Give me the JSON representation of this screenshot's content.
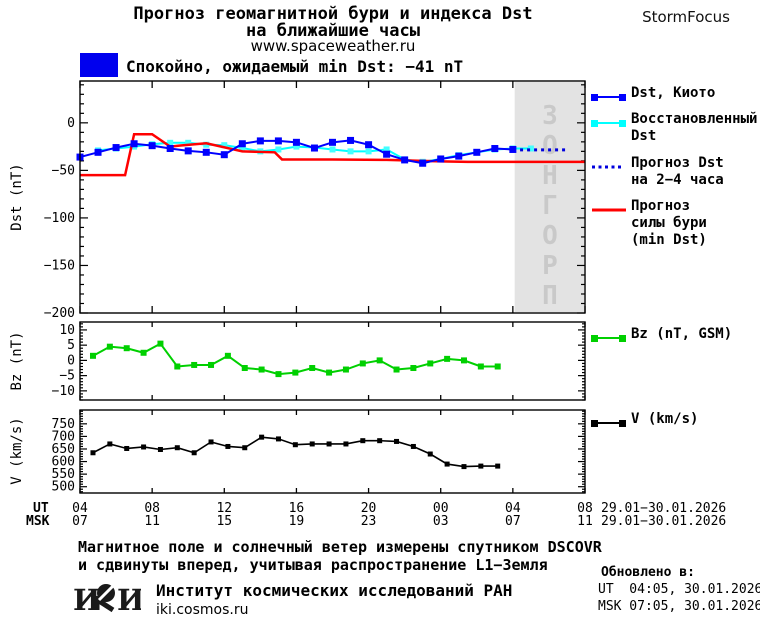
{
  "header": {
    "title_line1": "Прогноз геомагнитной бури и индекса Dst",
    "title_line2": "на ближайшие часы",
    "website": "www.spaceweather.ru",
    "brand": "StormFocus",
    "status_text": "Спокойно, ожидаемый min Dst: −41 nT",
    "status_color": "#0000ee"
  },
  "colors": {
    "dst_kyoto": "#0000ff",
    "dst_restored": "#00ffff",
    "dst_forecast": "#0000dd",
    "storm_forecast": "#ff0000",
    "bz": "#00d000",
    "v": "#000000"
  },
  "forecast_band": {
    "label": "ПРОГНОЗ",
    "start_hour": 24.1,
    "color": "#e3e3e3",
    "text_color": "#c9c9c9"
  },
  "chart_data": [
    {
      "type": "line",
      "ylabel": "Dst (nT)",
      "ylim": [
        -200,
        44
      ],
      "xlim_hours": [
        0,
        28
      ],
      "x_major_step": 4,
      "y_minor_step": 10,
      "y_major_ticks": [
        {
          "v": 0,
          "label": "0"
        },
        {
          "v": -50,
          "label": "−50"
        },
        {
          "v": -100,
          "label": "−100"
        },
        {
          "v": -150,
          "label": "−150"
        },
        {
          "v": -200,
          "label": "−200"
        }
      ],
      "series": [
        {
          "name": "dst_restored",
          "color": "#00ffff",
          "marker": "square",
          "marker_size": 6,
          "marker_color": "#44ffff",
          "width": 2,
          "x_start": 1,
          "x_step": 1,
          "values": [
            -29,
            -27,
            -25,
            -22.5,
            -21,
            -21,
            -23,
            -23.5,
            -26.5,
            -30,
            -28,
            -25,
            -26,
            -28,
            -30,
            -30,
            -28,
            -38.5,
            -41,
            -38,
            -34,
            -31,
            -28,
            -27,
            -27
          ]
        },
        {
          "name": "storm_forecast",
          "color": "#ff0000",
          "width": 2.5,
          "points": [
            [
              0,
              -55
            ],
            [
              2.5,
              -55
            ],
            [
              3,
              -12
            ],
            [
              4,
              -12
            ],
            [
              5,
              -25
            ],
            [
              5.5,
              -24
            ],
            [
              7,
              -21.5
            ],
            [
              9,
              -30
            ],
            [
              10.8,
              -31
            ],
            [
              11.2,
              -38.5
            ],
            [
              14,
              -38.5
            ],
            [
              17,
              -39
            ],
            [
              20,
              -40.5
            ],
            [
              21.5,
              -41
            ],
            [
              28,
              -41
            ]
          ]
        },
        {
          "name": "dst_kyoto",
          "color": "#0000ff",
          "marker": "square",
          "marker_size": 7,
          "width": 2,
          "x_start": 0,
          "x_step": 1,
          "values": [
            -36,
            -31,
            -26,
            -22,
            -24,
            -27,
            -29.5,
            -31,
            -33.5,
            -22,
            -19,
            -19,
            -20.5,
            -26.5,
            -20.5,
            -18.5,
            -23,
            -33,
            -39,
            -42.5,
            -38,
            -35,
            -31,
            -27,
            -28
          ]
        },
        {
          "name": "dst_forecast",
          "color": "#0000dd",
          "style": "dotted",
          "width": 3,
          "points": [
            [
              24.4,
              -28.5
            ],
            [
              27.1,
              -28.5
            ]
          ]
        }
      ]
    },
    {
      "type": "line",
      "ylabel": "Bz (nT)",
      "ylim": [
        -13,
        12.6
      ],
      "xlim_hours": [
        0,
        28
      ],
      "x_major_step": 4,
      "y_minor_step": 1,
      "y_major_ticks": [
        {
          "v": 10,
          "label": "10"
        },
        {
          "v": 5,
          "label": "5"
        },
        {
          "v": 0,
          "label": "0"
        },
        {
          "v": -5,
          "label": "−5"
        },
        {
          "v": -10,
          "label": "−10"
        }
      ],
      "series": [
        {
          "name": "bz",
          "color": "#00d000",
          "marker": "square",
          "marker_size": 6,
          "width": 2,
          "x_start": 0.72,
          "x_step": 0.935,
          "values": [
            1.5,
            4.5,
            4,
            2.5,
            5.5,
            -2,
            -1.5,
            -1.5,
            1.5,
            -2.5,
            -3,
            -4.5,
            -4,
            -2.5,
            -4,
            -3,
            -1,
            0,
            -3,
            -2.5,
            -1,
            0.5,
            0,
            -2,
            -2
          ]
        }
      ]
    },
    {
      "type": "line",
      "ylabel": "V (km/s)",
      "ylim": [
        475,
        805
      ],
      "xlim_hours": [
        0,
        28
      ],
      "x_major_step": 4,
      "y_minor_step": 10,
      "y_major_ticks": [
        {
          "v": 750,
          "label": "750"
        },
        {
          "v": 700,
          "label": "700"
        },
        {
          "v": 650,
          "label": "650"
        },
        {
          "v": 600,
          "label": "600"
        },
        {
          "v": 550,
          "label": "550"
        },
        {
          "v": 500,
          "label": "500"
        }
      ],
      "series": [
        {
          "name": "v",
          "color": "#000000",
          "marker": "square",
          "marker_size": 5,
          "width": 1.6,
          "x_start": 0.72,
          "x_step": 0.935,
          "values": [
            635,
            670,
            652,
            658,
            648,
            655,
            635,
            678,
            660,
            655,
            697,
            690,
            667,
            670,
            670,
            670,
            683,
            683,
            680,
            660,
            630,
            590,
            580,
            582,
            582
          ]
        }
      ]
    }
  ],
  "x_axis": {
    "ut_label": "UT",
    "msk_label": "MSK",
    "ut_ticks": [
      "04",
      "08",
      "12",
      "16",
      "20",
      "00",
      "04",
      "08"
    ],
    "msk_ticks": [
      "07",
      "11",
      "15",
      "19",
      "23",
      "03",
      "07",
      "11"
    ],
    "date_range": "29.01−30.01.2026"
  },
  "legend": {
    "main": [
      {
        "series": "dst_kyoto",
        "swatch": "line-squares",
        "lines": [
          "Dst, Киото"
        ]
      },
      {
        "series": "dst_restored",
        "swatch": "line-squares",
        "lines": [
          "Восстановленный",
          "Dst"
        ]
      },
      {
        "series": "dst_forecast",
        "swatch": "dotted",
        "lines": [
          "Прогноз Dst",
          "на 2−4 часа"
        ]
      },
      {
        "series": "storm_forecast",
        "swatch": "line",
        "lines": [
          "Прогноз",
          "силы бури",
          "(min Dst)"
        ]
      }
    ],
    "bz": {
      "series": "bz",
      "swatch": "line-squares",
      "label": "Bz (nT, GSM)"
    },
    "v": {
      "series": "v",
      "swatch": "line-squares",
      "label": "V (km/s)"
    }
  },
  "footer": {
    "note_line1": "Магнитное поле и солнечный ветер измерены спутником DSCOVR",
    "note_line2": "и сдвинуты вперед, учитывая распространение L1−Земля",
    "logo_text": "ИКИ",
    "institute": "Институт космических исследований РАН",
    "website": "iki.cosmos.ru",
    "updated_label": "Обновлено в:",
    "updated_ut": "UT  04:05, 30.01.2026",
    "updated_msk": "MSK 07:05, 30.01.2026"
  }
}
